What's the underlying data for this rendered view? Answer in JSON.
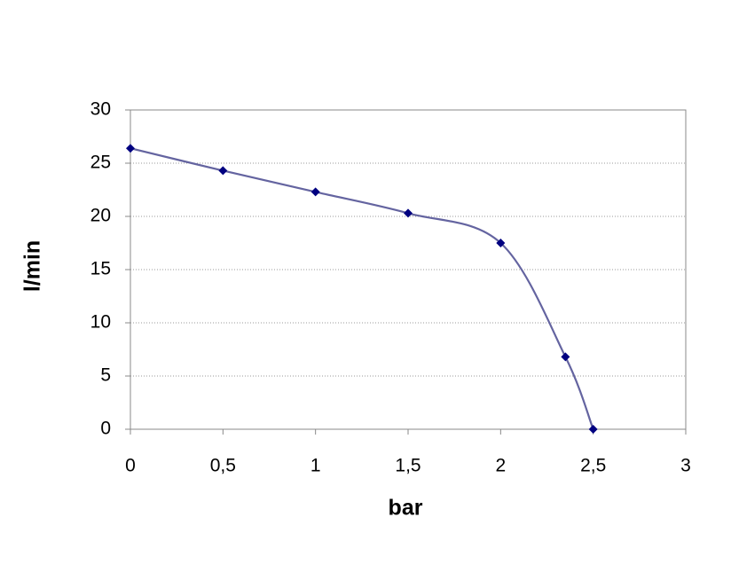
{
  "chart_data": {
    "type": "line",
    "x": [
      0,
      0.5,
      1,
      1.5,
      2,
      2.35,
      2.5
    ],
    "values": [
      26.4,
      24.3,
      22.3,
      20.3,
      17.5,
      6.8,
      0
    ],
    "color": "#6464a0",
    "marker_color": "#000080",
    "smooth": true,
    "xlabel": "bar",
    "ylabel": "l/min",
    "xlim": [
      0,
      3
    ],
    "xticks": [
      0,
      {
        "value": 0.5,
        "label": "0,5"
      },
      1,
      {
        "value": 1.5,
        "label": "1,5"
      },
      2,
      {
        "value": 2.5,
        "label": "2,5"
      },
      3
    ],
    "ylim": [
      0,
      30
    ],
    "yticks": [
      0,
      5,
      10,
      15,
      20,
      25,
      30
    ],
    "grid": true
  }
}
